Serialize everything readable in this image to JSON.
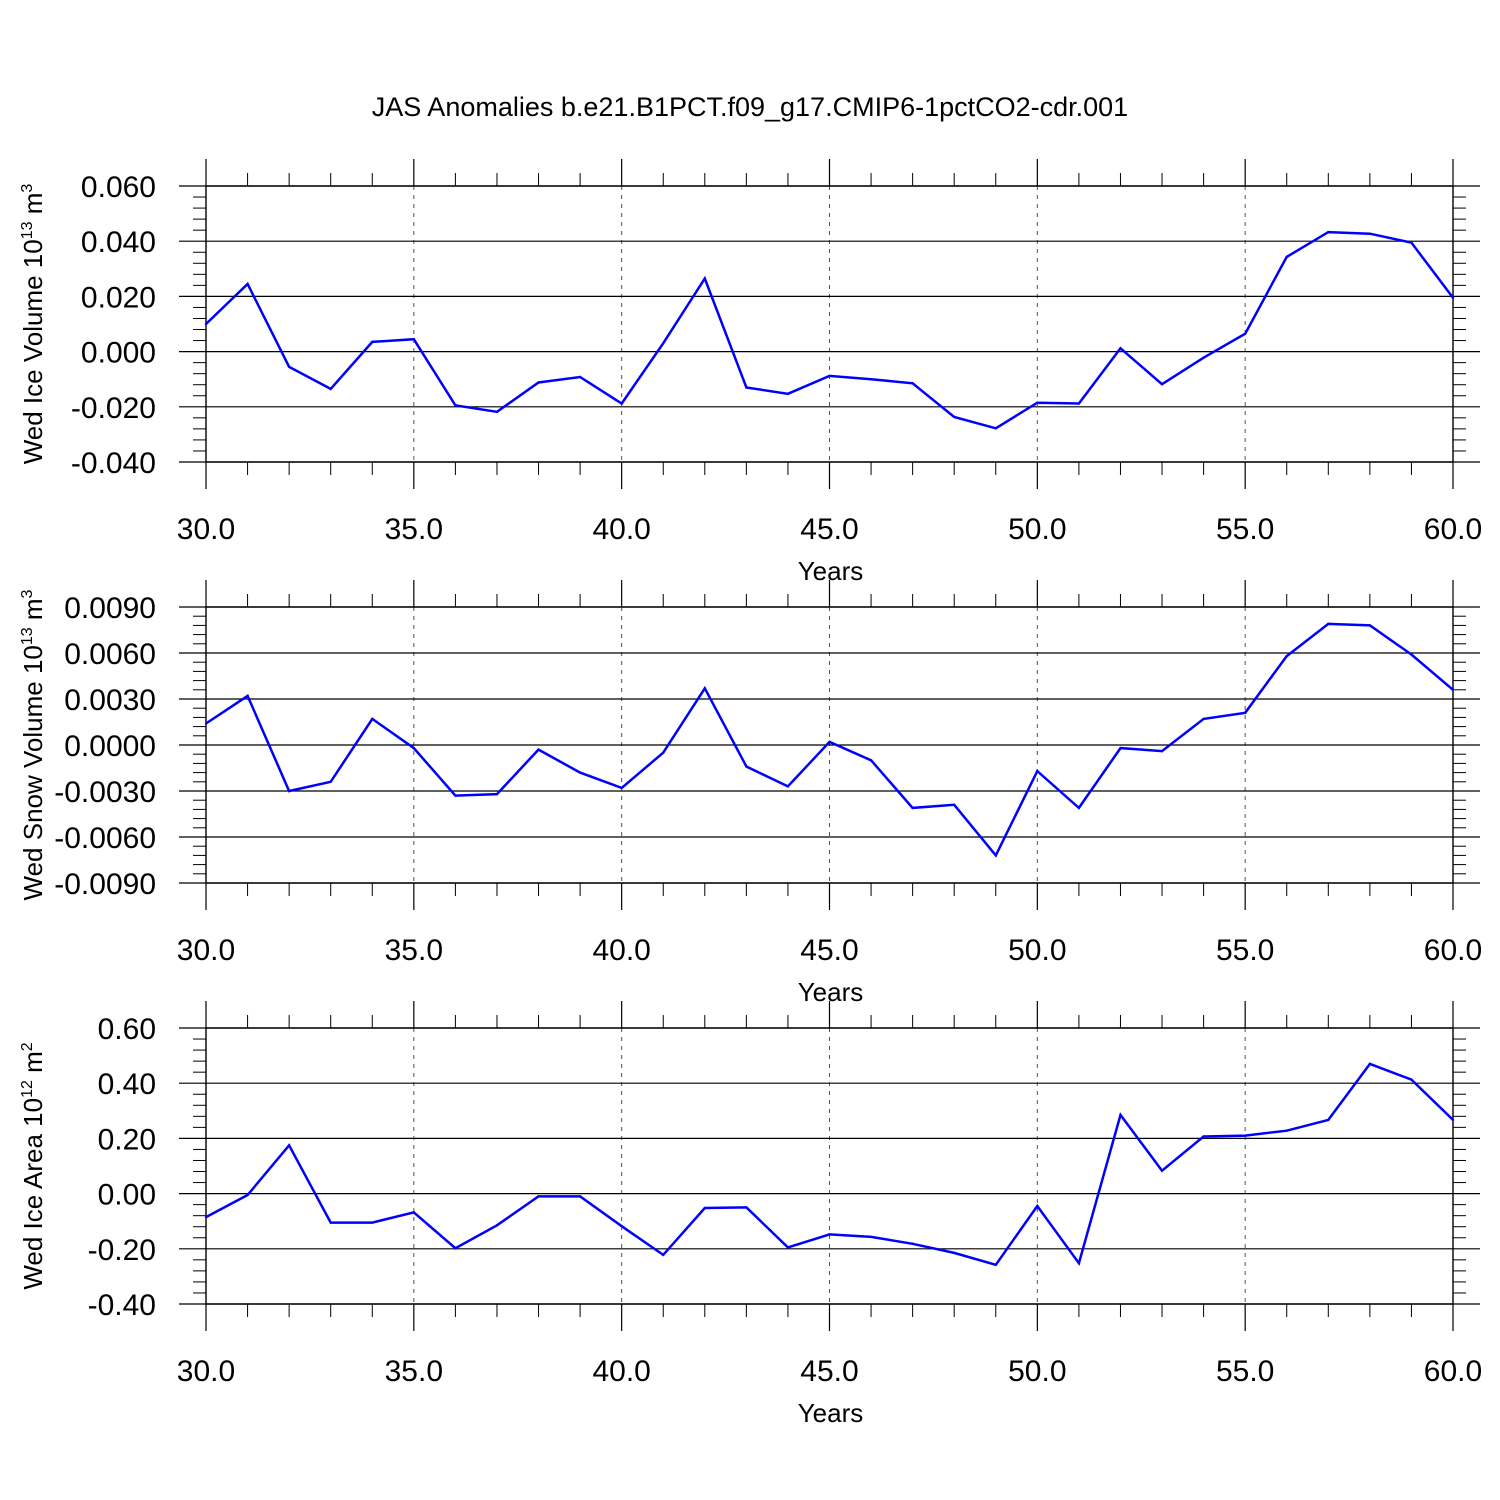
{
  "title": "JAS Anomalies b.e21.B1PCT.f09_g17.CMIP6-1pctCO2-cdr.001",
  "colors": {
    "series": "#0000ff",
    "axis": "#000000",
    "grid": "#555555"
  },
  "chart_data": [
    {
      "type": "line",
      "title": "",
      "xlabel": "Years",
      "ylabel": {
        "text": "Wed Ice Volume 10",
        "sup": "13",
        "unit": " m",
        "unit_sup": "3"
      },
      "xlim": [
        30,
        60
      ],
      "ylim": [
        -0.04,
        0.06
      ],
      "xticks": [
        30,
        35,
        40,
        45,
        50,
        55,
        60
      ],
      "xtick_labels": [
        "30.0",
        "35.0",
        "40.0",
        "45.0",
        "50.0",
        "55.0",
        "60.0"
      ],
      "yticks": [
        -0.04,
        -0.02,
        0.0,
        0.02,
        0.04,
        0.06
      ],
      "ytick_labels": [
        "-0.040",
        "-0.020",
        "0.000",
        "0.020",
        "0.040",
        "0.060"
      ],
      "grid": "vertical dashed at major x ticks",
      "x": [
        30,
        31,
        32,
        33,
        34,
        35,
        36,
        37,
        38,
        39,
        40,
        41,
        42,
        43,
        44,
        45,
        46,
        47,
        48,
        49,
        50,
        51,
        52,
        53,
        54,
        55,
        56,
        57,
        58,
        59,
        60
      ],
      "series": [
        {
          "values": [
            0.01,
            0.0245,
            -0.0055,
            -0.0135,
            0.0035,
            0.0045,
            -0.0195,
            -0.0218,
            -0.0112,
            -0.0092,
            -0.0188,
            0.003,
            0.0265,
            -0.013,
            -0.0153,
            -0.0088,
            -0.01,
            -0.0115,
            -0.0237,
            -0.0278,
            -0.0185,
            -0.0188,
            0.0012,
            -0.0118,
            -0.0022,
            0.0065,
            0.0343,
            0.0433,
            0.0427,
            0.0395,
            0.0195
          ]
        }
      ]
    },
    {
      "type": "line",
      "title": "",
      "xlabel": "Years",
      "ylabel": {
        "text": "Wed Snow Volume 10",
        "sup": "13",
        "unit": " m",
        "unit_sup": "3"
      },
      "xlim": [
        30,
        60
      ],
      "ylim": [
        -0.009,
        0.009
      ],
      "xticks": [
        30,
        35,
        40,
        45,
        50,
        55,
        60
      ],
      "xtick_labels": [
        "30.0",
        "35.0",
        "40.0",
        "45.0",
        "50.0",
        "55.0",
        "60.0"
      ],
      "yticks": [
        -0.009,
        -0.006,
        -0.003,
        0.0,
        0.003,
        0.006,
        0.009
      ],
      "ytick_labels": [
        "-0.0090",
        "-0.0060",
        "-0.0030",
        "0.0000",
        "0.0030",
        "0.0060",
        "0.0090"
      ],
      "grid": "vertical dashed at major x ticks",
      "x": [
        30,
        31,
        32,
        33,
        34,
        35,
        36,
        37,
        38,
        39,
        40,
        41,
        42,
        43,
        44,
        45,
        46,
        47,
        48,
        49,
        50,
        51,
        52,
        53,
        54,
        55,
        56,
        57,
        58,
        59,
        60
      ],
      "series": [
        {
          "values": [
            0.0014,
            0.0032,
            -0.003,
            -0.0024,
            0.0017,
            -0.0002,
            -0.0033,
            -0.0032,
            -0.0003,
            -0.0018,
            -0.0028,
            -0.0005,
            0.0037,
            -0.0014,
            -0.0027,
            0.0002,
            -0.001,
            -0.0041,
            -0.0039,
            -0.0072,
            -0.0017,
            -0.0041,
            -0.0002,
            -0.0004,
            0.0017,
            0.0021,
            0.0058,
            0.0079,
            0.0078,
            0.0059,
            0.0036
          ]
        }
      ]
    },
    {
      "type": "line",
      "title": "",
      "xlabel": "Years",
      "ylabel": {
        "text": "Wed Ice Area 10",
        "sup": "12",
        "unit": " m",
        "unit_sup": "2"
      },
      "xlim": [
        30,
        60
      ],
      "ylim": [
        -0.4,
        0.6
      ],
      "xticks": [
        30,
        35,
        40,
        45,
        50,
        55,
        60
      ],
      "xtick_labels": [
        "30.0",
        "35.0",
        "40.0",
        "45.0",
        "50.0",
        "55.0",
        "60.0"
      ],
      "yticks": [
        -0.4,
        -0.2,
        0.0,
        0.2,
        0.4,
        0.6
      ],
      "ytick_labels": [
        "-0.40",
        "-0.20",
        "0.00",
        "0.20",
        "0.40",
        "0.60"
      ],
      "grid": "vertical dashed at major x ticks",
      "x": [
        30,
        31,
        32,
        33,
        34,
        35,
        36,
        37,
        38,
        39,
        40,
        41,
        42,
        43,
        44,
        45,
        46,
        47,
        48,
        49,
        50,
        51,
        52,
        53,
        54,
        55,
        56,
        57,
        58,
        59,
        60
      ],
      "series": [
        {
          "values": [
            -0.085,
            -0.005,
            0.175,
            -0.105,
            -0.105,
            -0.068,
            -0.198,
            -0.115,
            -0.01,
            -0.01,
            -0.118,
            -0.222,
            -0.052,
            -0.05,
            -0.195,
            -0.148,
            -0.157,
            -0.182,
            -0.215,
            -0.258,
            -0.045,
            -0.252,
            0.285,
            0.083,
            0.207,
            0.21,
            0.228,
            0.267,
            0.47,
            0.413,
            0.267
          ]
        }
      ]
    }
  ]
}
